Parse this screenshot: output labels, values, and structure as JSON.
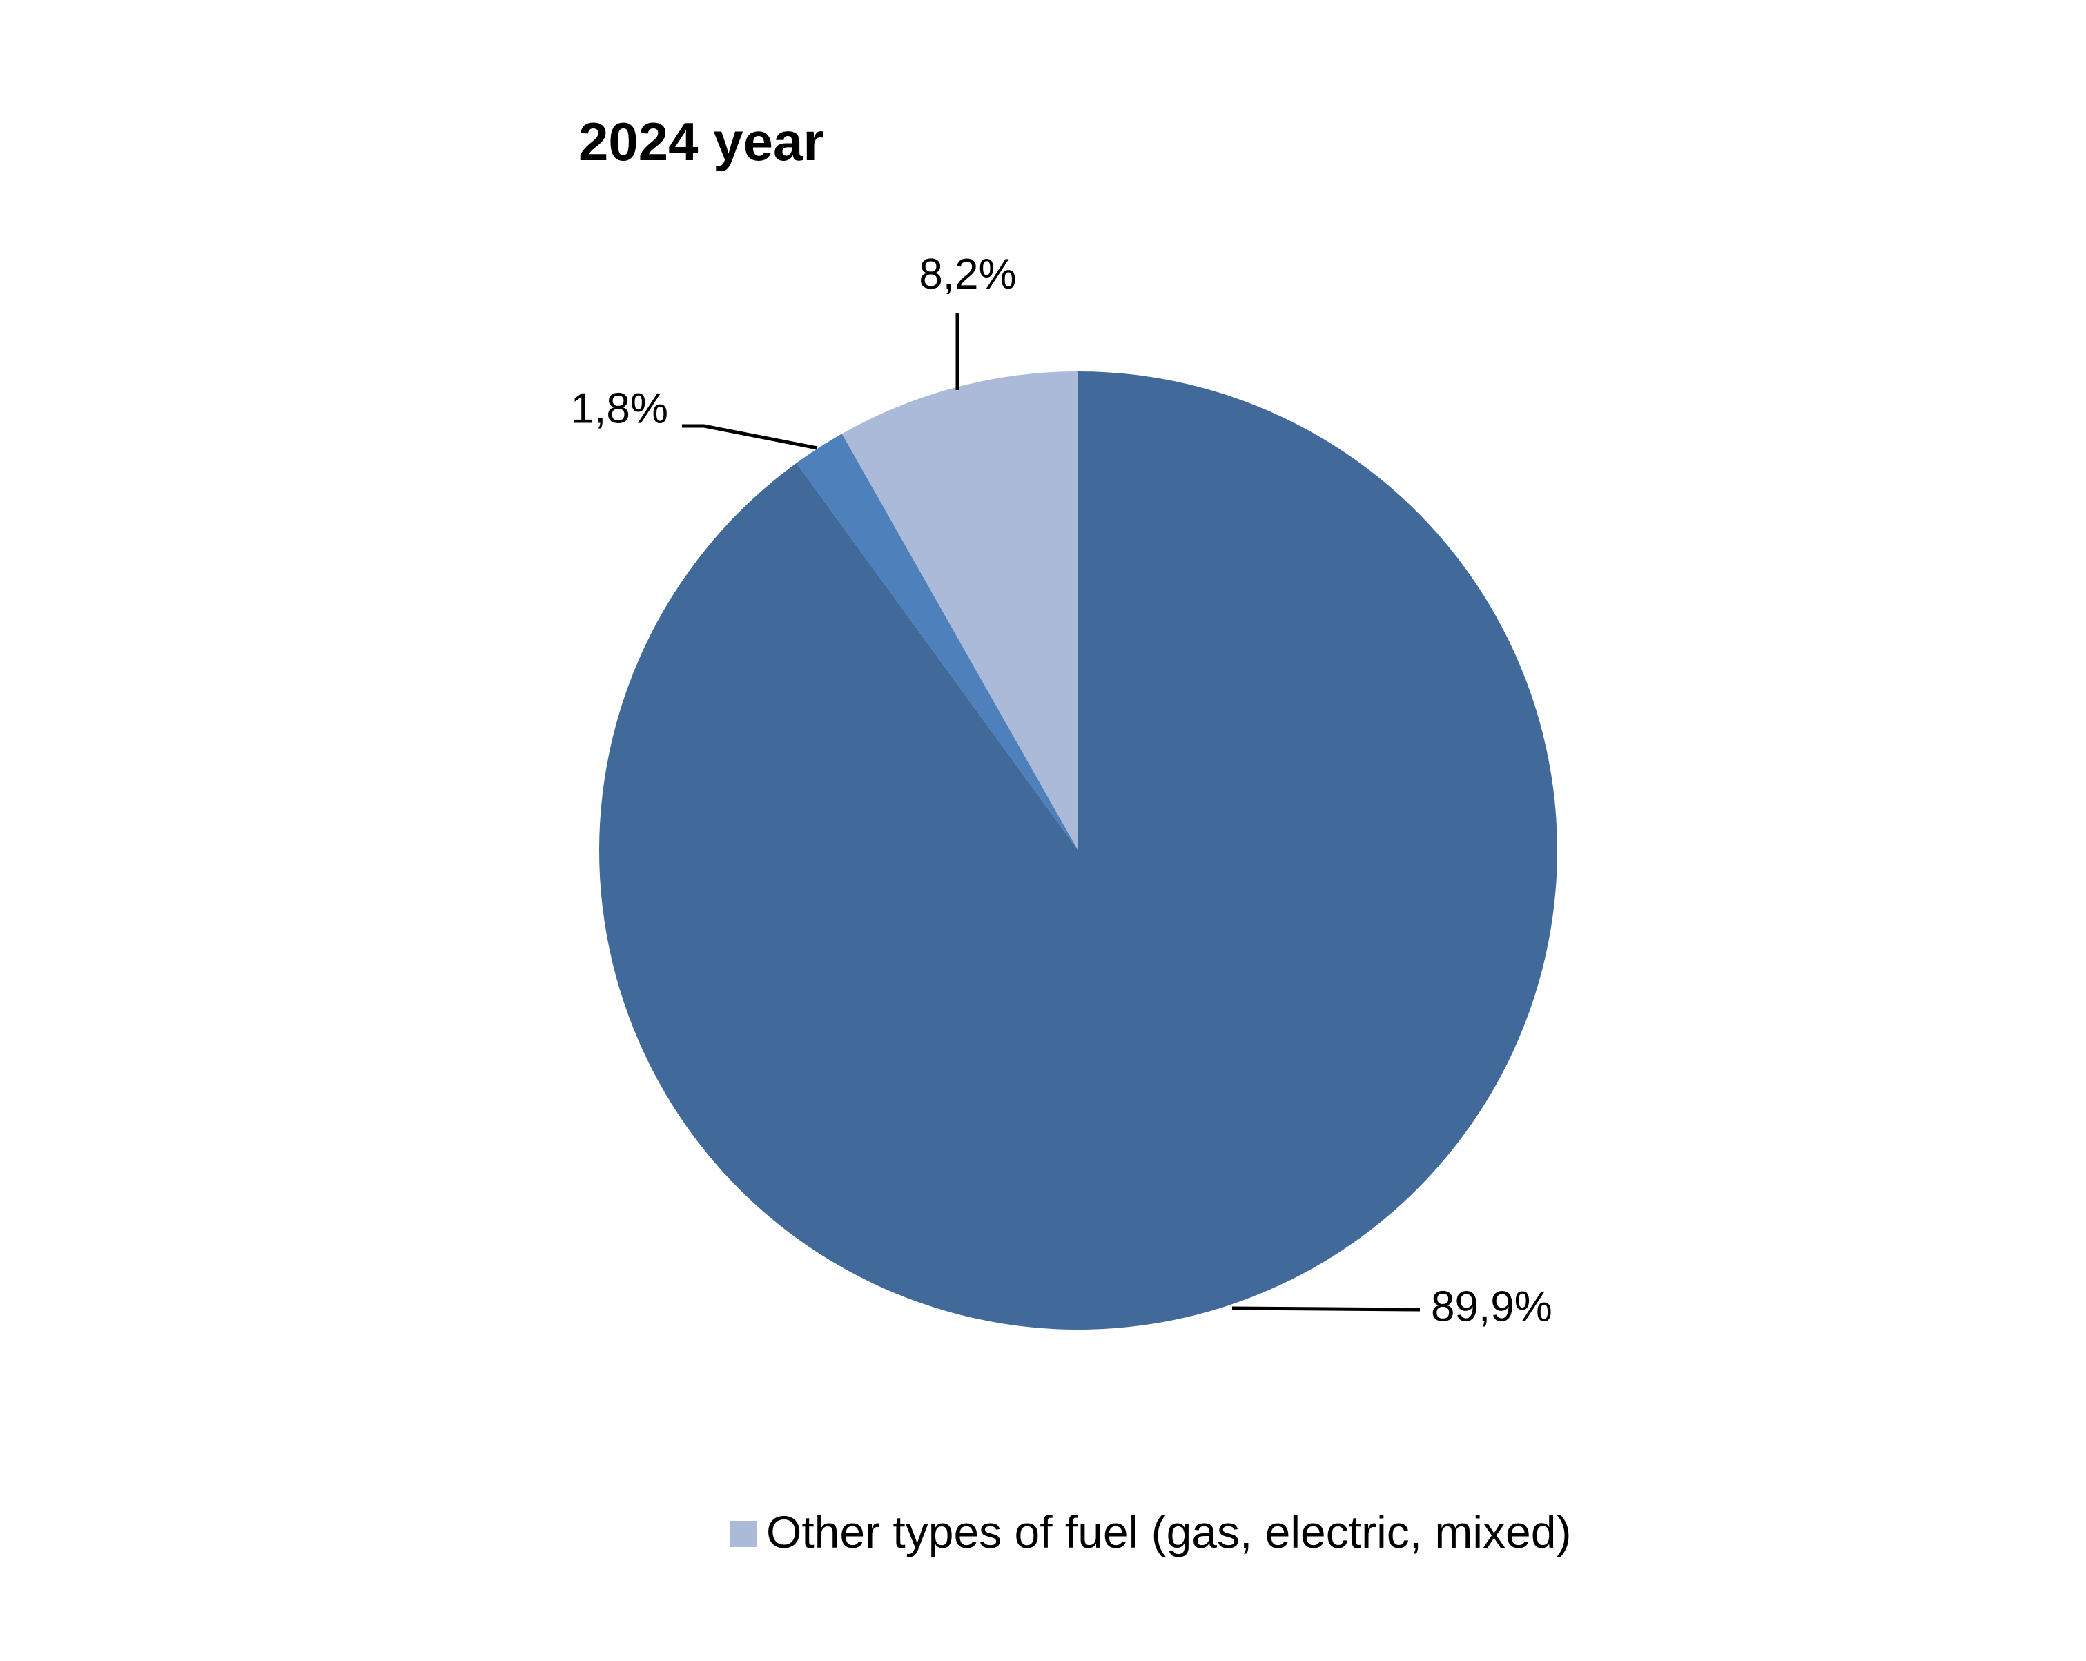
{
  "chart_data": {
    "type": "pie",
    "title": "2024 year",
    "start_angle_deg": 0,
    "direction": "clockwise",
    "slices": [
      {
        "label": "",
        "value": 89.9,
        "display": "89,9%",
        "color": "#416a9b"
      },
      {
        "label": "",
        "value": 1.8,
        "display": "1,8%",
        "color": "#4e80bb"
      },
      {
        "label": "Other types of fuel (gas, electric, mixed)",
        "value": 8.2,
        "display": "8,2%",
        "color": "#abbad8"
      }
    ],
    "legend": {
      "position": "bottom",
      "entries": [
        {
          "label": "Other types of fuel (gas, electric, mixed)",
          "color": "#abbad8"
        }
      ]
    }
  }
}
